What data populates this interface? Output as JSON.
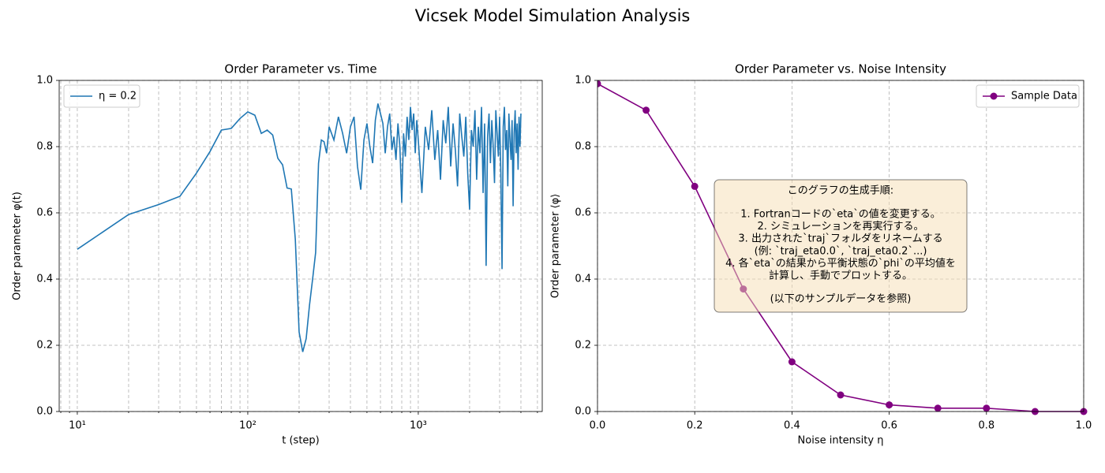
{
  "title": "Vicsek Model Simulation Analysis",
  "chart_data": [
    {
      "type": "line",
      "title": "Order Parameter vs. Time",
      "xlabel": "t (step)",
      "ylabel": "Order parameter φ(t)",
      "xscale": "log",
      "grid": true,
      "legend": "upper left",
      "xlim": [
        7.83,
        5335
      ],
      "ylim": [
        0,
        1
      ],
      "xticks": [
        {
          "value": 10,
          "label": "10¹"
        },
        {
          "value": 100,
          "label": "10²"
        },
        {
          "value": 1000,
          "label": "10³"
        }
      ],
      "xticks_minor": [
        8,
        9,
        20,
        30,
        40,
        50,
        60,
        70,
        80,
        90,
        200,
        300,
        400,
        500,
        600,
        700,
        800,
        900,
        2000,
        3000,
        4000,
        5000
      ],
      "yticks": [
        {
          "value": 0,
          "label": "0.0"
        },
        0.2,
        0.4,
        0.6,
        0.8,
        {
          "value": 1,
          "label": "1.0"
        }
      ],
      "x": [
        10,
        20,
        30,
        40,
        50,
        60,
        70,
        80,
        90,
        100,
        110,
        120,
        130,
        140,
        150,
        160,
        170,
        180,
        190,
        200,
        210,
        220,
        230,
        240,
        250,
        260,
        270,
        280,
        290,
        300,
        320,
        340,
        360,
        380,
        400,
        420,
        440,
        460,
        480,
        500,
        520,
        540,
        560,
        580,
        600,
        620,
        640,
        660,
        680,
        700,
        720,
        740,
        760,
        780,
        800,
        820,
        840,
        860,
        880,
        900,
        920,
        940,
        960,
        980,
        1000,
        1050,
        1100,
        1150,
        1200,
        1250,
        1300,
        1350,
        1400,
        1450,
        1500,
        1550,
        1600,
        1650,
        1700,
        1750,
        1800,
        1850,
        1900,
        1950,
        2000,
        2050,
        2100,
        2150,
        2200,
        2250,
        2300,
        2350,
        2400,
        2450,
        2500,
        2550,
        2600,
        2650,
        2700,
        2750,
        2800,
        2850,
        2900,
        2950,
        3000,
        3050,
        3100,
        3150,
        3200,
        3250,
        3300,
        3350,
        3400,
        3450,
        3500,
        3550,
        3600,
        3650,
        3700,
        3750,
        3800,
        3850,
        3900,
        3950,
        4000
      ],
      "series": [
        {
          "name": "η = 0.2",
          "color": "#1f77b4",
          "values": [
            0.49,
            0.595,
            0.625,
            0.65,
            0.72,
            0.785,
            0.85,
            0.855,
            0.885,
            0.905,
            0.895,
            0.84,
            0.85,
            0.835,
            0.765,
            0.745,
            0.675,
            0.672,
            0.52,
            0.24,
            0.18,
            0.22,
            0.32,
            0.4,
            0.48,
            0.75,
            0.82,
            0.815,
            0.78,
            0.86,
            0.82,
            0.89,
            0.84,
            0.78,
            0.86,
            0.89,
            0.74,
            0.67,
            0.82,
            0.87,
            0.8,
            0.75,
            0.88,
            0.93,
            0.9,
            0.87,
            0.78,
            0.86,
            0.9,
            0.79,
            0.83,
            0.76,
            0.87,
            0.8,
            0.63,
            0.84,
            0.77,
            0.89,
            0.82,
            0.92,
            0.85,
            0.9,
            0.78,
            0.88,
            0.82,
            0.66,
            0.86,
            0.79,
            0.91,
            0.76,
            0.85,
            0.7,
            0.88,
            0.81,
            0.92,
            0.74,
            0.87,
            0.79,
            0.68,
            0.9,
            0.83,
            0.77,
            0.89,
            0.72,
            0.61,
            0.85,
            0.8,
            0.91,
            0.7,
            0.86,
            0.78,
            0.92,
            0.66,
            0.87,
            0.44,
            0.83,
            0.9,
            0.75,
            0.88,
            0.8,
            0.69,
            0.91,
            0.84,
            0.77,
            0.89,
            0.72,
            0.43,
            0.86,
            0.92,
            0.79,
            0.85,
            0.68,
            0.9,
            0.82,
            0.76,
            0.88,
            0.62,
            0.84,
            0.91,
            0.78,
            0.87,
            0.73,
            0.89,
            0.8,
            0.9
          ]
        }
      ]
    },
    {
      "type": "line",
      "title": "Order Parameter vs. Noise Intensity",
      "xlabel": "Noise intensity η",
      "ylabel": "Order parameter ⟨φ⟩",
      "xscale": "linear",
      "grid": true,
      "legend": "upper right",
      "markers": true,
      "xlim": [
        0,
        1
      ],
      "ylim": [
        0,
        1
      ],
      "xticks": [
        {
          "value": 0,
          "label": "0.0"
        },
        0.2,
        0.4,
        0.6,
        0.8,
        {
          "value": 1,
          "label": "1.0"
        }
      ],
      "yticks": [
        {
          "value": 0,
          "label": "0.0"
        },
        0.2,
        0.4,
        0.6,
        0.8,
        {
          "value": 1,
          "label": "1.0"
        }
      ],
      "x": [
        0,
        0.1,
        0.2,
        0.3,
        0.4,
        0.5,
        0.6,
        0.7,
        0.8,
        0.9,
        1
      ],
      "series": [
        {
          "name": "Sample Data",
          "color": "#800080",
          "values": [
            0.99,
            0.91,
            0.68,
            0.37,
            0.15,
            0.05,
            0.02,
            0.01,
            0.01,
            0,
            0
          ]
        }
      ],
      "annotation": {
        "heading": "このグラフの生成手順:",
        "steps": [
          "1. Fortranコードの`eta`の値を変更する。",
          "2. シミュレーションを再実行する。",
          "3. 出力された`traj`フォルダをリネームする",
          "(例: `traj_eta0.0`, `traj_eta0.2`...)",
          "4. 各`eta`の結果から平衡状態の`phi`の平均値を",
          "計算し、手動でプロットする。"
        ],
        "note": "(以下のサンプルデータを参照)"
      }
    }
  ]
}
